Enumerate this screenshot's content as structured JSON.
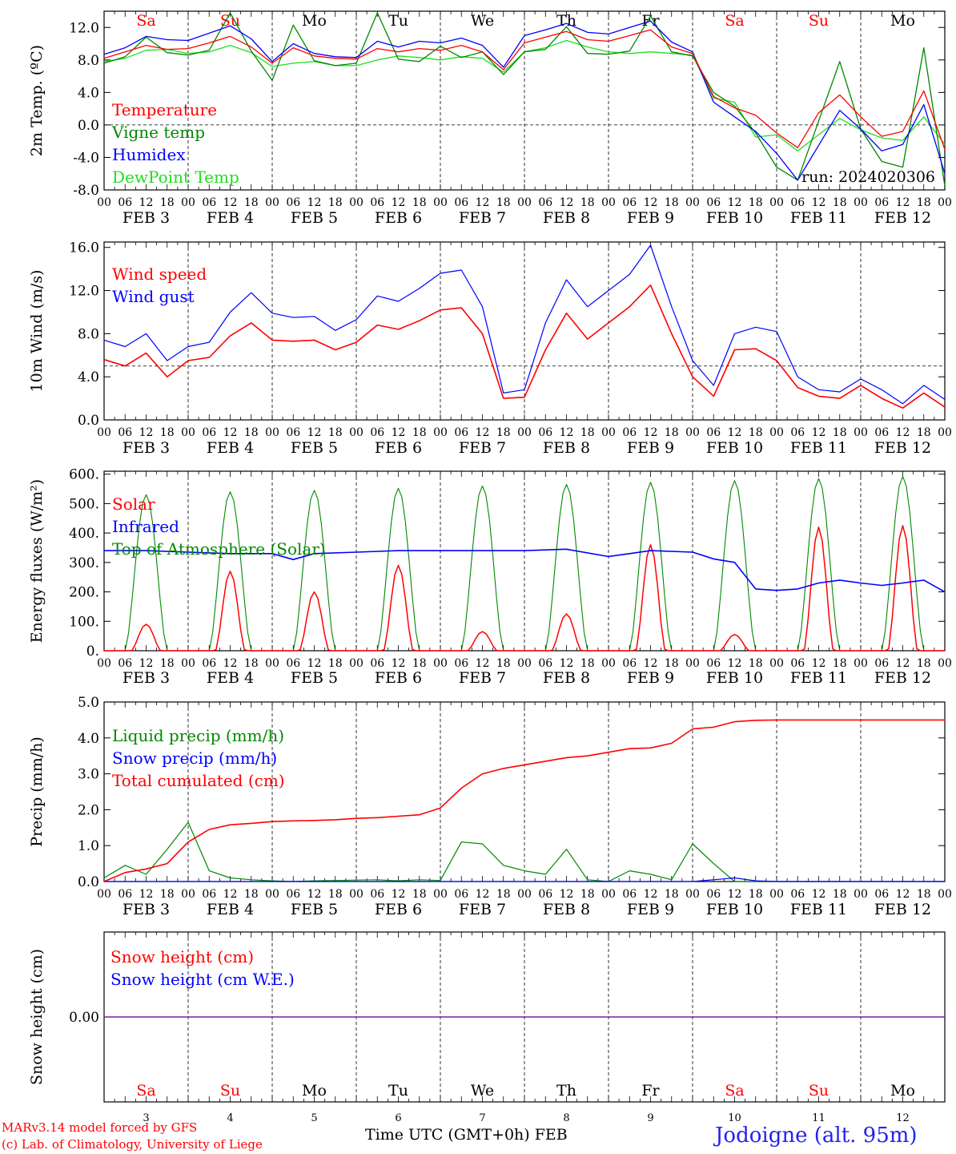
{
  "colors": {
    "red": "#ff0000",
    "green": "#008800",
    "blue": "#0000ff",
    "lightgreen": "#22dd22",
    "purple": "#7a1fa2",
    "axis": "#000000",
    "weekend": "#ff0000",
    "weekday": "#000000"
  },
  "days": {
    "dow": [
      "Sa",
      "Su",
      "Mo",
      "Tu",
      "We",
      "Th",
      "Fr",
      "Sa",
      "Su",
      "Mo"
    ],
    "weekend": [
      true,
      true,
      false,
      false,
      false,
      false,
      false,
      true,
      true,
      false
    ],
    "dates": [
      "3",
      "4",
      "5",
      "6",
      "7",
      "8",
      "9",
      "10",
      "11",
      "12"
    ],
    "month": "FEB",
    "hour_labels": [
      "00",
      "06",
      "12",
      "18"
    ],
    "end_label": "00"
  },
  "footer": {
    "credit_line1": "MARv3.14 model forced by GFS",
    "credit_line2": "(c) Lab. of Climatology, University of Liege",
    "xaxis_title": "Time UTC (GMT+0h)",
    "xaxis_month": "FEB",
    "station": "Jodoigne (alt. 95m)"
  },
  "chart_data": [
    {
      "type": "line",
      "ylabel": "2m Temp. (ºC)",
      "ylim": [
        -8,
        14
      ],
      "yticks": [
        "12.0",
        "8.0",
        "4.0",
        "0.0",
        "-4.0",
        "-8.0"
      ],
      "ytick_values": [
        12,
        8,
        4,
        0,
        -4,
        -8
      ],
      "ref_line": 0,
      "annotation": "run: 2024020306",
      "x_hours": [
        0,
        6,
        12,
        18,
        24,
        30,
        36,
        42,
        48,
        54,
        60,
        66,
        72,
        78,
        84,
        90,
        96,
        102,
        108,
        114,
        120,
        126,
        132,
        138,
        144,
        150,
        156,
        162,
        168,
        174,
        180,
        186,
        192,
        198,
        204,
        210,
        216,
        222,
        228,
        234,
        240
      ],
      "series": [
        {
          "name": "Temperature",
          "color": "#ff0000",
          "values": [
            8.2,
            9.0,
            9.8,
            9.3,
            9.4,
            10.1,
            10.9,
            9.6,
            7.6,
            9.5,
            8.5,
            8.2,
            8.1,
            9.4,
            9.0,
            9.4,
            9.2,
            9.8,
            9.0,
            6.8,
            10.1,
            10.8,
            11.5,
            10.5,
            10.3,
            11.0,
            11.7,
            9.6,
            8.8,
            3.5,
            2.1,
            1.2,
            -1.0,
            -2.8,
            1.5,
            3.7,
            1.0,
            -1.4,
            -0.8,
            4.2,
            -3.0
          ]
        },
        {
          "name": "Vigne temp",
          "color": "#008800",
          "values": [
            7.6,
            8.4,
            10.8,
            8.9,
            8.6,
            9.2,
            13.8,
            9.1,
            5.5,
            12.3,
            7.9,
            7.3,
            7.6,
            13.8,
            8.1,
            7.8,
            9.7,
            8.3,
            9.0,
            6.2,
            9.0,
            9.3,
            12.1,
            8.8,
            8.7,
            9.1,
            13.4,
            9.0,
            8.5,
            4.0,
            2.3,
            -1.0,
            -5.2,
            -6.8,
            0.5,
            7.8,
            -0.5,
            -4.5,
            -5.2,
            9.5,
            -7.5
          ]
        },
        {
          "name": "Humidex",
          "color": "#0000ff",
          "values": [
            8.7,
            9.5,
            10.9,
            10.5,
            10.4,
            11.3,
            12.2,
            10.6,
            7.8,
            10.0,
            8.8,
            8.4,
            8.3,
            10.3,
            9.6,
            10.3,
            10.1,
            10.7,
            9.8,
            7.1,
            11.0,
            11.7,
            12.5,
            11.4,
            11.2,
            12.0,
            12.8,
            10.2,
            9.0,
            2.8,
            1.0,
            -0.8,
            -3.5,
            -6.8,
            -2.5,
            1.8,
            -0.5,
            -3.2,
            -2.4,
            2.5,
            -6.0
          ]
        },
        {
          "name": "DewPoint Temp",
          "color": "#22dd22",
          "values": [
            7.8,
            8.2,
            9.2,
            9.3,
            8.8,
            9.0,
            9.8,
            8.9,
            7.2,
            7.6,
            7.8,
            7.3,
            7.3,
            8.0,
            8.5,
            8.3,
            8.0,
            8.4,
            8.2,
            6.5,
            9.0,
            9.5,
            10.4,
            9.6,
            9.0,
            8.8,
            9.0,
            8.8,
            8.6,
            3.3,
            2.8,
            -1.5,
            -1.2,
            -3.2,
            -1.2,
            0.8,
            -0.6,
            -1.6,
            -1.9,
            1.0,
            -2.4
          ]
        }
      ]
    },
    {
      "type": "line",
      "ylabel": "10m Wind (m/s)",
      "ylim": [
        0,
        16.5
      ],
      "yticks": [
        "16.0",
        "12.0",
        "8.0",
        "4.0",
        "0.0"
      ],
      "ytick_values": [
        16,
        12,
        8,
        4,
        0
      ],
      "ref_line": 5,
      "x_hours": [
        0,
        6,
        12,
        18,
        24,
        30,
        36,
        42,
        48,
        54,
        60,
        66,
        72,
        78,
        84,
        90,
        96,
        102,
        108,
        114,
        120,
        126,
        132,
        138,
        144,
        150,
        156,
        162,
        168,
        174,
        180,
        186,
        192,
        198,
        204,
        210,
        216,
        222,
        228,
        234,
        240
      ],
      "series": [
        {
          "name": "Wind speed",
          "color": "#ff0000",
          "values": [
            5.6,
            5.0,
            6.2,
            4.0,
            5.5,
            5.8,
            7.8,
            9.0,
            7.4,
            7.3,
            7.4,
            6.5,
            7.2,
            8.8,
            8.4,
            9.2,
            10.2,
            10.4,
            8.0,
            2.0,
            2.1,
            6.5,
            9.9,
            7.5,
            9.0,
            10.5,
            12.5,
            8.0,
            4.0,
            2.2,
            6.5,
            6.6,
            5.5,
            3.0,
            2.2,
            2.0,
            3.2,
            2.0,
            1.1,
            2.5,
            1.2
          ]
        },
        {
          "name": "Wind gust",
          "color": "#0000ff",
          "values": [
            7.4,
            6.8,
            8.0,
            5.5,
            6.8,
            7.2,
            10.0,
            11.8,
            9.9,
            9.5,
            9.6,
            8.3,
            9.3,
            11.5,
            11.0,
            12.2,
            13.6,
            13.9,
            10.5,
            2.5,
            2.8,
            9.0,
            13.0,
            10.5,
            12.0,
            13.5,
            16.2,
            10.5,
            5.5,
            3.2,
            8.0,
            8.6,
            8.2,
            4.0,
            2.8,
            2.6,
            3.8,
            2.8,
            1.5,
            3.2,
            1.9
          ]
        }
      ]
    },
    {
      "type": "line",
      "ylabel": "Energy fluxes (W/m²)",
      "ylim": [
        0,
        610
      ],
      "yticks": [
        "600.",
        "500.",
        "400.",
        "300.",
        "200.",
        "100.",
        "0."
      ],
      "ytick_values": [
        600,
        500,
        400,
        300,
        200,
        100,
        0
      ],
      "series": [
        {
          "name": "Solar",
          "color": "#ff0000",
          "peaks": [
            90,
            270,
            200,
            290,
            65,
            125,
            360,
            55,
            420,
            425
          ]
        },
        {
          "name": "Infrared",
          "color": "#0000ff",
          "x_hours": [
            0,
            12,
            24,
            36,
            48,
            54,
            60,
            72,
            84,
            96,
            108,
            120,
            132,
            144,
            150,
            156,
            168,
            174,
            180,
            186,
            192,
            198,
            204,
            210,
            216,
            222,
            228,
            234,
            240
          ],
          "values": [
            340,
            340,
            335,
            330,
            330,
            310,
            330,
            335,
            340,
            340,
            340,
            340,
            345,
            320,
            330,
            340,
            335,
            312,
            300,
            210,
            205,
            210,
            230,
            240,
            230,
            222,
            230,
            240,
            200
          ]
        },
        {
          "name": "Top of Atmosphere (Solar)",
          "color": "#008800",
          "peaks": [
            530,
            540,
            545,
            552,
            560,
            565,
            572,
            578,
            585,
            592
          ]
        }
      ]
    },
    {
      "type": "line",
      "ylabel": "Precip (mm/h)",
      "ylim": [
        0,
        5
      ],
      "yticks": [
        "5.0",
        "4.0",
        "3.0",
        "2.0",
        "1.0",
        "0.0"
      ],
      "ytick_values": [
        5,
        4,
        3,
        2,
        1,
        0
      ],
      "x_hours": [
        0,
        6,
        12,
        18,
        24,
        30,
        36,
        42,
        48,
        54,
        60,
        66,
        72,
        78,
        84,
        90,
        96,
        102,
        108,
        114,
        120,
        126,
        132,
        138,
        144,
        150,
        156,
        162,
        168,
        174,
        180,
        186,
        192,
        198,
        204,
        210,
        216,
        222,
        228,
        234,
        240
      ],
      "series": [
        {
          "name": "Liquid precip (mm/h)",
          "color": "#008800",
          "values": [
            0.1,
            0.45,
            0.2,
            0.9,
            1.65,
            0.3,
            0.1,
            0.05,
            0.02,
            0.0,
            0.02,
            0.03,
            0.04,
            0.05,
            0.02,
            0.05,
            0.03,
            1.1,
            1.05,
            0.45,
            0.3,
            0.2,
            0.9,
            0.05,
            0.0,
            0.3,
            0.2,
            0.05,
            1.05,
            0.5,
            0.0,
            0.0,
            0.0,
            0.0,
            0.0,
            0.0,
            0.0,
            0.0,
            0.0,
            0.0,
            0.0
          ]
        },
        {
          "name": "Snow precip (mm/h)",
          "color": "#0000ff",
          "values": [
            0.0,
            0.0,
            0.0,
            0.0,
            0.0,
            0.0,
            0.0,
            0.0,
            0.0,
            0.0,
            0.0,
            0.0,
            0.0,
            0.0,
            0.0,
            0.0,
            0.0,
            0.0,
            0.0,
            0.0,
            0.0,
            0.0,
            0.0,
            0.0,
            0.0,
            0.0,
            0.0,
            0.0,
            0.0,
            0.05,
            0.1,
            0.02,
            0.0,
            0.0,
            0.0,
            0.0,
            0.0,
            0.0,
            0.0,
            0.0,
            0.0
          ]
        },
        {
          "name": "Total cumulated (cm)",
          "color": "#ff0000",
          "values": [
            0.0,
            0.25,
            0.35,
            0.5,
            1.1,
            1.45,
            1.58,
            1.62,
            1.67,
            1.69,
            1.7,
            1.72,
            1.76,
            1.78,
            1.82,
            1.86,
            2.05,
            2.6,
            3.0,
            3.15,
            3.25,
            3.35,
            3.45,
            3.5,
            3.6,
            3.7,
            3.72,
            3.85,
            4.25,
            4.3,
            4.45,
            4.49,
            4.5,
            4.5,
            4.5,
            4.5,
            4.5,
            4.5,
            4.5,
            4.5,
            4.5
          ]
        }
      ]
    },
    {
      "type": "line",
      "ylabel": "Snow height (cm)",
      "ylim": [
        -1,
        1
      ],
      "yticks": [
        "0.00"
      ],
      "ytick_values": [
        0
      ],
      "series": [
        {
          "name": "Snow height (cm)",
          "color": "#ff0000",
          "values": [
            0,
            0
          ]
        },
        {
          "name": "Snow height (cm W.E.)",
          "color": "#0000ff",
          "values": [
            0,
            0
          ]
        }
      ]
    }
  ]
}
